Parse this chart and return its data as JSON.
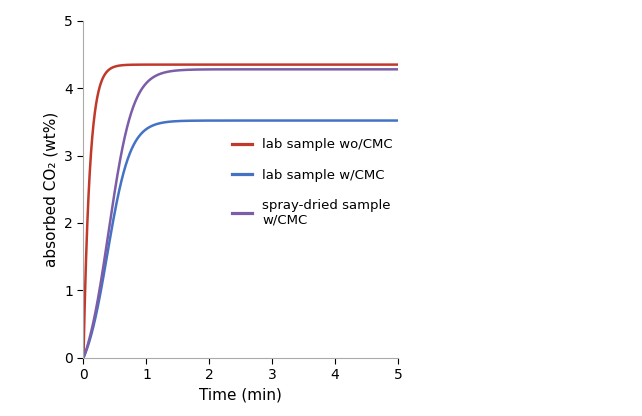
{
  "title": "",
  "xlabel": "Time (min)",
  "ylabel": "absorbed CO₂ (wt%)",
  "xlim": [
    0,
    5
  ],
  "ylim": [
    0,
    5
  ],
  "xticks": [
    0,
    1,
    2,
    3,
    4,
    5
  ],
  "yticks": [
    0,
    1,
    2,
    3,
    4,
    5
  ],
  "series": [
    {
      "label": "lab sample wo/CMC",
      "color": "#c0392b",
      "saturation": 4.35,
      "rate": 10.0,
      "lag": 0.0,
      "sigmoid": false
    },
    {
      "label": "lab sample w/CMC",
      "color": "#4472c4",
      "saturation": 3.52,
      "rate": 5.5,
      "lag": 0.0,
      "sigmoid": true,
      "inflection": 0.38
    },
    {
      "label": "spray-dried sample\nw/CMC",
      "color": "#7b5ea7",
      "saturation": 4.28,
      "rate": 5.2,
      "lag": 0.0,
      "sigmoid": true,
      "inflection": 0.4
    }
  ],
  "legend_fontsize": 9.5,
  "axis_fontsize": 11,
  "tick_fontsize": 10,
  "line_width": 1.8,
  "background_color": "#ffffff",
  "figsize": [
    6.42,
    4.16
  ],
  "dpi": 100
}
